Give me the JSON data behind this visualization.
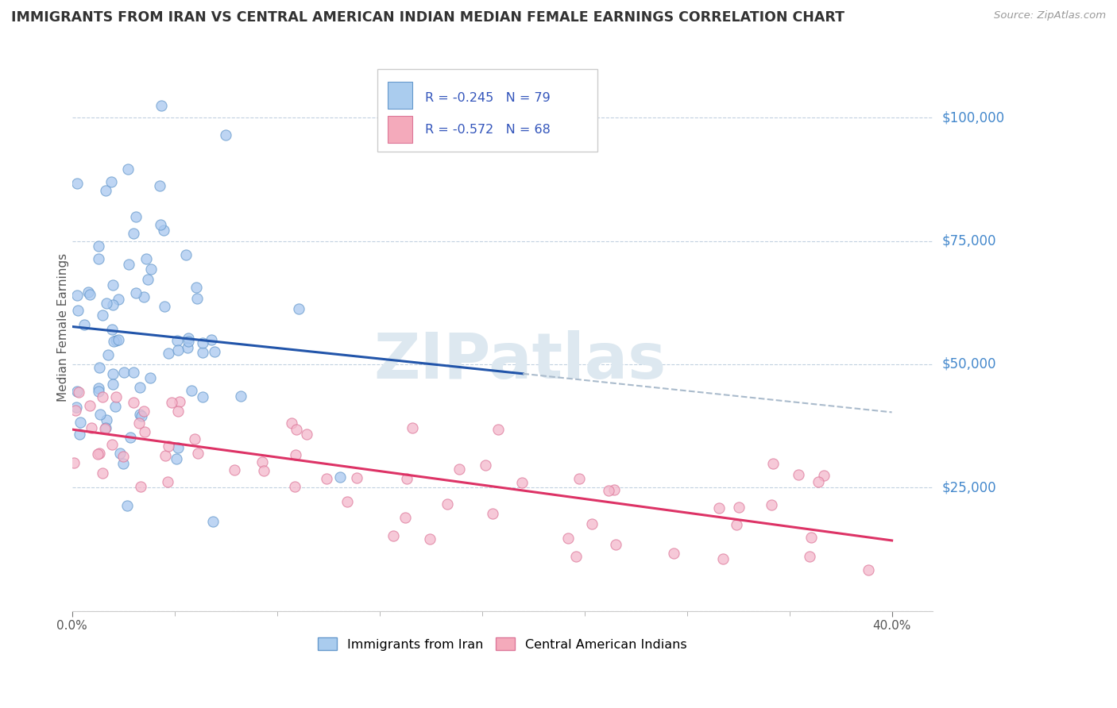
{
  "title": "IMMIGRANTS FROM IRAN VS CENTRAL AMERICAN INDIAN MEDIAN FEMALE EARNINGS CORRELATION CHART",
  "source": "Source: ZipAtlas.com",
  "ylabel": "Median Female Earnings",
  "xlim": [
    0.0,
    0.42
  ],
  "ylim": [
    0,
    115000
  ],
  "yticks": [
    0,
    25000,
    50000,
    75000,
    100000
  ],
  "ytick_labels": [
    "",
    "$25,000",
    "$50,000",
    "$75,000",
    "$100,000"
  ],
  "series": [
    {
      "name": "Immigrants from Iran",
      "dot_color": "#a8c8f0",
      "edge_color": "#6699cc",
      "R": -0.245,
      "N": 79,
      "line_color": "#2255aa",
      "x_max": 0.22
    },
    {
      "name": "Central American Indians",
      "dot_color": "#f4b8cc",
      "edge_color": "#dd7799",
      "R": -0.572,
      "N": 68,
      "line_color": "#dd3366",
      "x_max": 0.4
    }
  ],
  "legend_R_color": "#3355bb",
  "legend_box_color1": "#aaccee",
  "legend_box_color2": "#f4aabb",
  "background_color": "#ffffff",
  "grid_color": "#bbccdd",
  "watermark_color": "#dde8f0",
  "title_color": "#333333",
  "axis_label_color": "#4488cc",
  "dashed_line_color": "#aabbcc",
  "bottom_label_color": "#555555",
  "blue_line_intercept": 60000,
  "blue_line_slope": -75000,
  "pink_line_intercept": 37000,
  "pink_line_slope": -55000
}
